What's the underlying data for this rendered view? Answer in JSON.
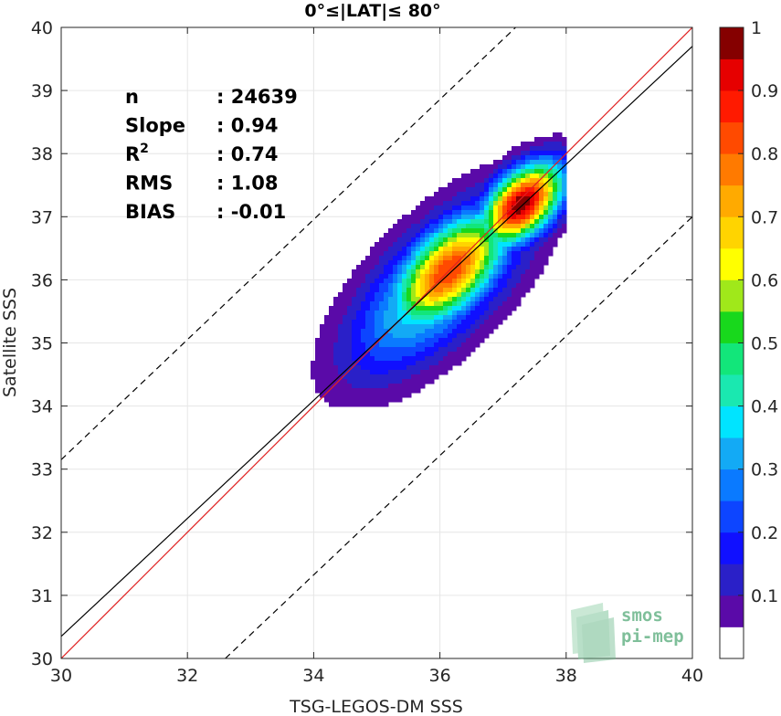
{
  "chart_data": {
    "type": "heatmap",
    "subtype": "density-contour",
    "title": "0°≤|LAT|≤ 80°",
    "xlabel": "TSG-LEGOS-DM SSS",
    "ylabel": "Satellite SSS",
    "xlim": [
      30,
      40
    ],
    "ylim": [
      30,
      40
    ],
    "xticks": [
      "30",
      "32",
      "34",
      "36",
      "38",
      "40"
    ],
    "yticks": [
      "30",
      "31",
      "32",
      "33",
      "34",
      "35",
      "36",
      "37",
      "38",
      "39",
      "40"
    ],
    "grid": true,
    "stats": [
      {
        "label": "n",
        "sep": ": ",
        "value": "24639"
      },
      {
        "label": "Slope",
        "sep": ": ",
        "value": "0.94"
      },
      {
        "label": "R",
        "sup": "2",
        "sep": ": ",
        "value": "0.74"
      },
      {
        "label": "RMS",
        "sep": ": ",
        "value": "1.08"
      },
      {
        "label": "BIAS",
        "sep": ": ",
        "value": "-0.01"
      }
    ],
    "lines": [
      {
        "role": "identity",
        "color": "#e02020",
        "style": "solid",
        "points": [
          [
            30,
            30
          ],
          [
            40,
            40
          ]
        ]
      },
      {
        "role": "regression",
        "color": "#000000",
        "style": "solid",
        "points": [
          [
            30,
            30.35
          ],
          [
            40,
            39.7
          ]
        ]
      },
      {
        "role": "upper-bound",
        "color": "#000000",
        "style": "dashed",
        "points": [
          [
            30,
            33.15
          ],
          [
            37.2,
            40
          ]
        ]
      },
      {
        "role": "lower-bound",
        "color": "#000000",
        "style": "dashed",
        "points": [
          [
            32.6,
            30
          ],
          [
            40,
            37
          ]
        ]
      }
    ],
    "density_peaks": [
      {
        "x": 37.3,
        "y": 37.2,
        "value": 1.0
      },
      {
        "x": 36.15,
        "y": 36.15,
        "value": 0.85
      }
    ],
    "contour_levels": [
      0.05,
      0.1,
      0.15,
      0.2,
      0.25,
      0.3,
      0.35,
      0.4,
      0.45,
      0.5,
      0.55,
      0.6,
      0.65,
      0.7,
      0.75,
      0.8,
      0.85,
      0.9,
      0.95
    ],
    "colorbar": {
      "range": [
        0,
        1
      ],
      "ticks": [
        "0.1",
        "0.2",
        "0.3",
        "0.4",
        "0.5",
        "0.6",
        "0.7",
        "0.8",
        "0.9",
        "1"
      ],
      "colors": [
        "#ffffff",
        "#5a0aa8",
        "#2a20c8",
        "#1010ff",
        "#0d45ff",
        "#0a7aff",
        "#13aaf5",
        "#00e4ff",
        "#1ae8b0",
        "#12e67a",
        "#18d81c",
        "#a0e81a",
        "#ffff00",
        "#ffd400",
        "#ffaa00",
        "#ff7a00",
        "#ff4a00",
        "#ff1a00",
        "#e60000",
        "#850000"
      ]
    }
  },
  "logo": {
    "line1": "smos",
    "line2": "pi-mep"
  }
}
